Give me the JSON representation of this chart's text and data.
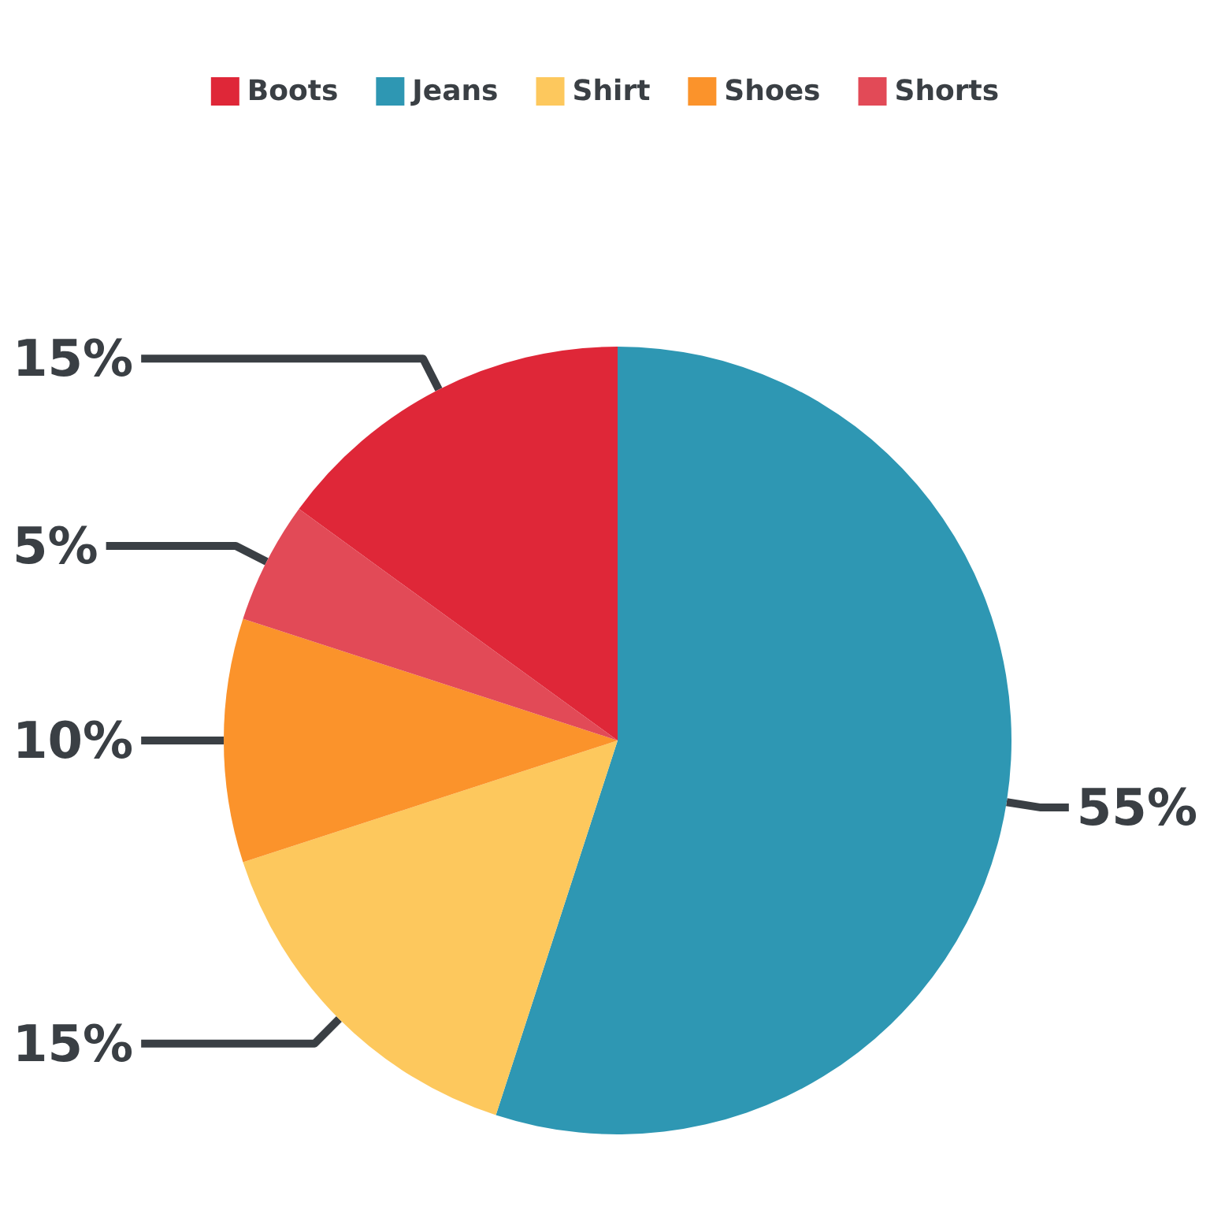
{
  "chart_data": {
    "type": "pie",
    "categories": [
      "Boots",
      "Jeans",
      "Shirt",
      "Shoes",
      "Shorts"
    ],
    "values": [
      15,
      55,
      15,
      10,
      5
    ],
    "colors": [
      "#df2738",
      "#2e97b3",
      "#fdc85d",
      "#fb932b",
      "#e24a57"
    ],
    "value_labels": [
      "15%",
      "55%",
      "15%",
      "10%",
      "5%"
    ],
    "legend": "top"
  }
}
